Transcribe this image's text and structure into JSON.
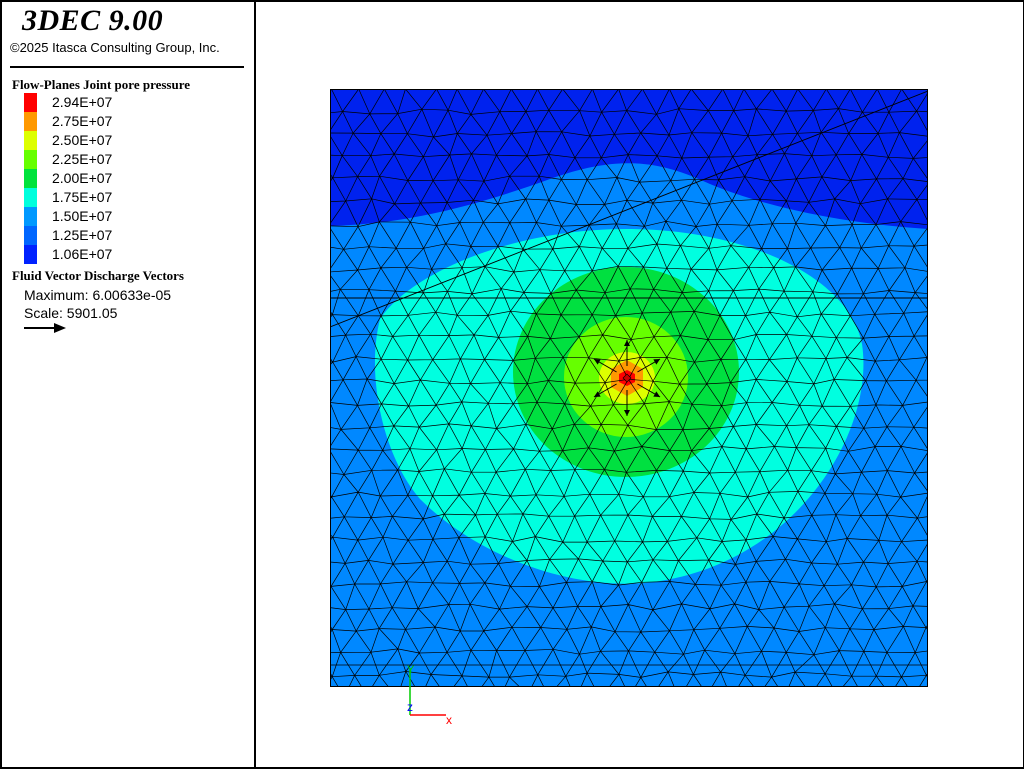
{
  "header": {
    "title": "3DEC 9.00",
    "copyright": "©2025 Itasca Consulting Group, Inc."
  },
  "legend": {
    "heading": "Flow-Planes Joint pore pressure",
    "items": [
      {
        "label": "2.94E+07",
        "color": "#ff0000"
      },
      {
        "label": "2.75E+07",
        "color": "#ff9900"
      },
      {
        "label": "2.50E+07",
        "color": "#ddff00"
      },
      {
        "label": "2.25E+07",
        "color": "#66ff00"
      },
      {
        "label": "2.00E+07",
        "color": "#00e33c"
      },
      {
        "label": "1.75E+07",
        "color": "#00ffdd"
      },
      {
        "label": "1.50E+07",
        "color": "#0099ff"
      },
      {
        "label": "1.25E+07",
        "color": "#0066ff"
      },
      {
        "label": "1.06E+07",
        "color": "#0022ff"
      }
    ]
  },
  "vectors": {
    "heading": "Fluid Vector Discharge Vectors",
    "maximum": "Maximum: 6.00633e-05",
    "scale": "Scale: 5901.05"
  },
  "axes": {
    "y_label": "Y",
    "z_label": "z",
    "x_label": "x",
    "y_color": "#00cc00",
    "z_color": "#0000ff",
    "x_color": "#ff0000"
  },
  "plot_colors": {
    "top_band": "#0022ee",
    "outer": "#0088ff",
    "cyan": "#00ffe0",
    "green": "#00e040",
    "lime": "#66ff00",
    "yellow": "#ddff00",
    "orange": "#ff9900",
    "red": "#ff0000"
  }
}
